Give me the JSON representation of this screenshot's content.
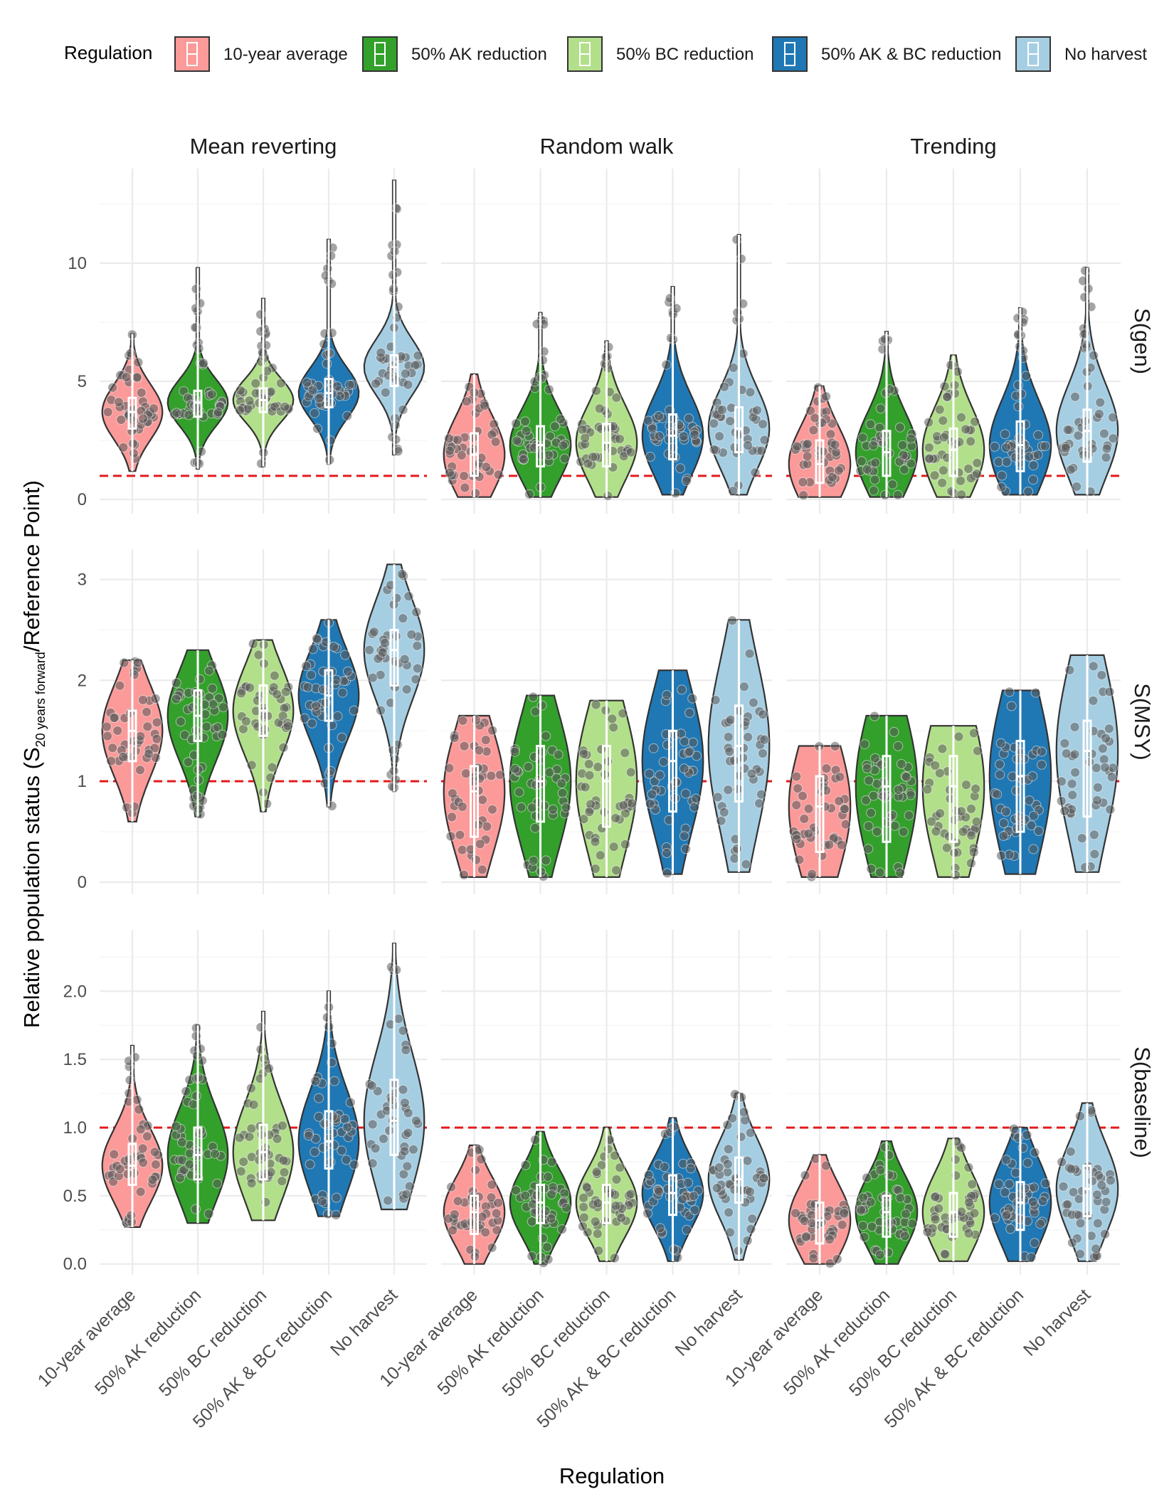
{
  "chart_data": {
    "type": "violin",
    "title": "",
    "xlabel": "Regulation",
    "ylabel": {
      "main": "Relative population status (S",
      "subscript": "20 years forward",
      "suffix": "/Reference Point)"
    },
    "legend": {
      "title": "Regulation",
      "position": "top",
      "entries": [
        {
          "label": "10-year average",
          "color": "#fb9a99"
        },
        {
          "label": "50% AK reduction",
          "color": "#33a02c"
        },
        {
          "label": "50% BC reduction",
          "color": "#b2df8a"
        },
        {
          "label": "50% AK & BC reduction",
          "color": "#1f78b4"
        },
        {
          "label": "No harvest",
          "color": "#a6cee3"
        }
      ]
    },
    "categories": [
      "10-year average",
      "50% AK reduction",
      "50% BC reduction",
      "50% AK & BC reduction",
      "No harvest"
    ],
    "columns": [
      "Mean reverting",
      "Random walk",
      "Trending"
    ],
    "rows": [
      {
        "label": "S(gen)",
        "ylim": [
          -0.6,
          14.0
        ],
        "ticks": [
          0,
          5,
          10
        ],
        "tick_labels": [
          "0",
          "5",
          "10"
        ]
      },
      {
        "label": "S(MSY)",
        "ylim": [
          -0.12,
          3.3
        ],
        "ticks": [
          0,
          1,
          2,
          3
        ],
        "tick_labels": [
          "0",
          "1",
          "2",
          "3"
        ]
      },
      {
        "label": "S(baseline)",
        "ylim": [
          -0.08,
          2.45
        ],
        "ticks": [
          0.0,
          0.5,
          1.0,
          1.5,
          2.0
        ],
        "tick_labels": [
          "0.0",
          "0.5",
          "1.0",
          "1.5",
          "2.0"
        ]
      }
    ],
    "reference_line": {
      "value": 1,
      "color": "#e31a1c",
      "style": "dashed"
    },
    "series": [
      {
        "row": "S(gen)",
        "column": "Mean reverting",
        "values": [
          {
            "category": "10-year average",
            "min": 1.2,
            "q1": 3.0,
            "median": 3.7,
            "q3": 4.3,
            "max": 7.0
          },
          {
            "category": "50% AK reduction",
            "min": 1.3,
            "q1": 3.5,
            "median": 4.1,
            "q3": 4.6,
            "max": 9.8
          },
          {
            "category": "50% BC reduction",
            "min": 1.4,
            "q1": 3.7,
            "median": 4.2,
            "q3": 4.7,
            "max": 8.5
          },
          {
            "category": "50% AK & BC reduction",
            "min": 1.5,
            "q1": 3.9,
            "median": 4.5,
            "q3": 5.1,
            "max": 11.0
          },
          {
            "category": "No harvest",
            "min": 1.9,
            "q1": 4.8,
            "median": 5.6,
            "q3": 6.1,
            "max": 13.5
          }
        ]
      },
      {
        "row": "S(gen)",
        "column": "Random walk",
        "values": [
          {
            "category": "10-year average",
            "min": 0.1,
            "q1": 1.0,
            "median": 1.9,
            "q3": 2.8,
            "max": 5.3
          },
          {
            "category": "50% AK reduction",
            "min": 0.1,
            "q1": 1.4,
            "median": 2.3,
            "q3": 3.1,
            "max": 7.9
          },
          {
            "category": "50% BC reduction",
            "min": 0.1,
            "q1": 1.4,
            "median": 2.4,
            "q3": 3.2,
            "max": 6.7
          },
          {
            "category": "50% AK & BC reduction",
            "min": 0.2,
            "q1": 1.7,
            "median": 2.7,
            "q3": 3.6,
            "max": 9.0
          },
          {
            "category": "No harvest",
            "min": 0.2,
            "q1": 2.0,
            "median": 3.0,
            "q3": 3.9,
            "max": 11.2
          }
        ]
      },
      {
        "row": "S(gen)",
        "column": "Trending",
        "values": [
          {
            "category": "10-year average",
            "min": 0.1,
            "q1": 0.7,
            "median": 1.5,
            "q3": 2.5,
            "max": 4.8
          },
          {
            "category": "50% AK reduction",
            "min": 0.1,
            "q1": 1.0,
            "median": 2.0,
            "q3": 2.9,
            "max": 7.1
          },
          {
            "category": "50% BC reduction",
            "min": 0.1,
            "q1": 1.0,
            "median": 2.1,
            "q3": 3.0,
            "max": 6.1
          },
          {
            "category": "50% AK & BC reduction",
            "min": 0.2,
            "q1": 1.2,
            "median": 2.3,
            "q3": 3.3,
            "max": 8.1
          },
          {
            "category": "No harvest",
            "min": 0.2,
            "q1": 1.6,
            "median": 2.9,
            "q3": 3.8,
            "max": 9.8
          }
        ]
      },
      {
        "row": "S(MSY)",
        "column": "Mean reverting",
        "values": [
          {
            "category": "10-year average",
            "min": 0.6,
            "q1": 1.2,
            "median": 1.5,
            "q3": 1.7,
            "max": 2.2
          },
          {
            "category": "50% AK reduction",
            "min": 0.65,
            "q1": 1.4,
            "median": 1.65,
            "q3": 1.9,
            "max": 2.3
          },
          {
            "category": "50% BC reduction",
            "min": 0.7,
            "q1": 1.45,
            "median": 1.7,
            "q3": 1.95,
            "max": 2.4
          },
          {
            "category": "50% AK & BC reduction",
            "min": 0.75,
            "q1": 1.6,
            "median": 1.85,
            "q3": 2.1,
            "max": 2.6
          },
          {
            "category": "No harvest",
            "min": 0.9,
            "q1": 1.95,
            "median": 2.3,
            "q3": 2.5,
            "max": 3.15
          }
        ]
      },
      {
        "row": "S(MSY)",
        "column": "Random walk",
        "values": [
          {
            "category": "10-year average",
            "min": 0.05,
            "q1": 0.45,
            "median": 0.9,
            "q3": 1.15,
            "max": 1.65
          },
          {
            "category": "50% AK reduction",
            "min": 0.05,
            "q1": 0.6,
            "median": 1.0,
            "q3": 1.35,
            "max": 1.85
          },
          {
            "category": "50% BC reduction",
            "min": 0.05,
            "q1": 0.55,
            "median": 1.0,
            "q3": 1.35,
            "max": 1.8
          },
          {
            "category": "50% AK & BC reduction",
            "min": 0.08,
            "q1": 0.7,
            "median": 1.2,
            "q3": 1.5,
            "max": 2.1
          },
          {
            "category": "No harvest",
            "min": 0.1,
            "q1": 0.8,
            "median": 1.35,
            "q3": 1.75,
            "max": 2.6
          }
        ]
      },
      {
        "row": "S(MSY)",
        "column": "Trending",
        "values": [
          {
            "category": "10-year average",
            "min": 0.05,
            "q1": 0.3,
            "median": 0.75,
            "q3": 1.05,
            "max": 1.35
          },
          {
            "category": "50% AK reduction",
            "min": 0.05,
            "q1": 0.4,
            "median": 0.95,
            "q3": 1.25,
            "max": 1.65
          },
          {
            "category": "50% BC reduction",
            "min": 0.05,
            "q1": 0.4,
            "median": 0.95,
            "q3": 1.25,
            "max": 1.55
          },
          {
            "category": "50% AK & BC reduction",
            "min": 0.08,
            "q1": 0.5,
            "median": 1.05,
            "q3": 1.4,
            "max": 1.9
          },
          {
            "category": "No harvest",
            "min": 0.1,
            "q1": 0.65,
            "median": 1.3,
            "q3": 1.6,
            "max": 2.25
          }
        ]
      },
      {
        "row": "S(baseline)",
        "column": "Mean reverting",
        "values": [
          {
            "category": "10-year average",
            "min": 0.27,
            "q1": 0.58,
            "median": 0.72,
            "q3": 0.88,
            "max": 1.6
          },
          {
            "category": "50% AK reduction",
            "min": 0.3,
            "q1": 0.62,
            "median": 0.8,
            "q3": 1.0,
            "max": 1.75
          },
          {
            "category": "50% BC reduction",
            "min": 0.32,
            "q1": 0.62,
            "median": 0.82,
            "q3": 1.02,
            "max": 1.85
          },
          {
            "category": "50% AK & BC reduction",
            "min": 0.35,
            "q1": 0.7,
            "median": 0.9,
            "q3": 1.12,
            "max": 2.0
          },
          {
            "category": "No harvest",
            "min": 0.4,
            "q1": 0.8,
            "median": 1.05,
            "q3": 1.35,
            "max": 2.35
          }
        ]
      },
      {
        "row": "S(baseline)",
        "column": "Random walk",
        "values": [
          {
            "category": "10-year average",
            "min": 0.0,
            "q1": 0.22,
            "median": 0.38,
            "q3": 0.5,
            "max": 0.87
          },
          {
            "category": "50% AK reduction",
            "min": 0.0,
            "q1": 0.3,
            "median": 0.45,
            "q3": 0.58,
            "max": 0.97
          },
          {
            "category": "50% BC reduction",
            "min": 0.02,
            "q1": 0.3,
            "median": 0.45,
            "q3": 0.58,
            "max": 1.0
          },
          {
            "category": "50% AK & BC reduction",
            "min": 0.02,
            "q1": 0.36,
            "median": 0.52,
            "q3": 0.65,
            "max": 1.07
          },
          {
            "category": "No harvest",
            "min": 0.03,
            "q1": 0.45,
            "median": 0.62,
            "q3": 0.78,
            "max": 1.25
          }
        ]
      },
      {
        "row": "S(baseline)",
        "column": "Trending",
        "values": [
          {
            "category": "10-year average",
            "min": 0.0,
            "q1": 0.15,
            "median": 0.32,
            "q3": 0.45,
            "max": 0.8
          },
          {
            "category": "50% AK reduction",
            "min": 0.0,
            "q1": 0.2,
            "median": 0.38,
            "q3": 0.5,
            "max": 0.9
          },
          {
            "category": "50% BC reduction",
            "min": 0.02,
            "q1": 0.2,
            "median": 0.38,
            "q3": 0.52,
            "max": 0.92
          },
          {
            "category": "50% AK & BC reduction",
            "min": 0.02,
            "q1": 0.25,
            "median": 0.45,
            "q3": 0.6,
            "max": 1.0
          },
          {
            "category": "No harvest",
            "min": 0.02,
            "q1": 0.35,
            "median": 0.55,
            "q3": 0.72,
            "max": 1.18
          }
        ]
      }
    ]
  }
}
